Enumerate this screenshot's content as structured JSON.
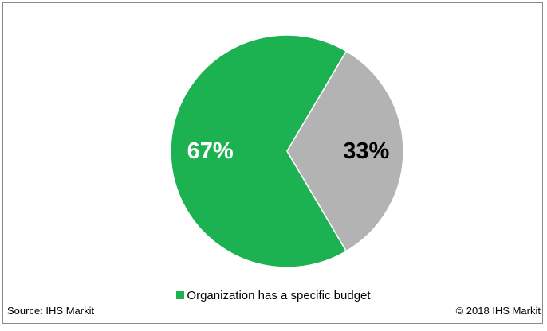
{
  "chart_data": {
    "type": "pie",
    "slices": [
      {
        "label": "Organization has a specific budget",
        "value": 67,
        "display": "67%",
        "color": "#1db251",
        "text_color": "#ffffff"
      },
      {
        "label": "",
        "value": 33,
        "display": "33%",
        "color": "#b3b3b3",
        "text_color": "#000000"
      }
    ],
    "legend": {
      "position": "bottom",
      "entries": [
        "Organization has a specific budget"
      ]
    }
  },
  "legend_label": "Organization has a specific budget",
  "legend_color": "#1db251",
  "source": "Source: IHS Markit",
  "copyright": "© 2018 IHS Markit"
}
